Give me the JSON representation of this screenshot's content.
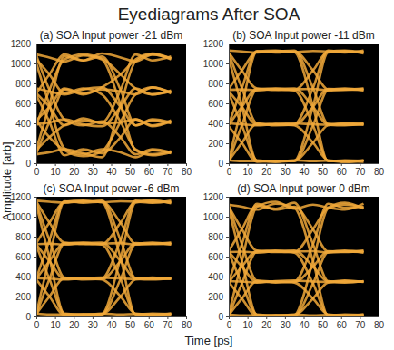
{
  "title": "Eyediagrams After SOA",
  "x_label": "Time [ps]",
  "y_label": "Amplitude [arb]",
  "chart_data": [
    {
      "type": "line",
      "title": "(a) SOA Input power -21 dBm",
      "color": "#f0a83a",
      "x": [
        0,
        7,
        15,
        25,
        35,
        45,
        53,
        62,
        72
      ],
      "xlim": [
        0,
        80
      ],
      "xticks": [
        0,
        10,
        20,
        30,
        40,
        50,
        60,
        70,
        80
      ],
      "ylim": [
        0,
        1200
      ],
      "yticks": [
        0,
        200,
        400,
        600,
        800,
        1000,
        1200
      ],
      "series": [
        {
          "values": [
            1000,
            585,
            150,
            90,
            140,
            110,
            60,
            130,
            100
          ]
        },
        {
          "values": [
            680,
            415,
            80,
            140,
            100,
            260,
            440,
            380,
            430
          ]
        },
        {
          "values": [
            430,
            260,
            130,
            70,
            120,
            415,
            690,
            760,
            700
          ]
        },
        {
          "values": [
            90,
            110,
            140,
            100,
            60,
            585,
            1020,
            1090,
            1040
          ]
        },
        {
          "values": [
            1080,
            735,
            440,
            380,
            420,
            260,
            90,
            140,
            110
          ]
        },
        {
          "values": [
            700,
            565,
            380,
            450,
            400,
            410,
            440,
            370,
            420
          ]
        },
        {
          "values": [
            390,
            410,
            440,
            390,
            370,
            565,
            750,
            690,
            730
          ]
        },
        {
          "values": [
            130,
            260,
            380,
            430,
            410,
            735,
            1090,
            1030,
            1070
          ]
        },
        {
          "values": [
            1040,
            890,
            700,
            750,
            690,
            415,
            140,
            90,
            120
          ]
        },
        {
          "values": [
            750,
            720,
            690,
            740,
            760,
            565,
            380,
            430,
            400
          ]
        },
        {
          "values": [
            430,
            565,
            750,
            700,
            740,
            720,
            690,
            760,
            710
          ]
        },
        {
          "values": [
            100,
            415,
            740,
            690,
            760,
            890,
            1040,
            1100,
            1050
          ]
        },
        {
          "values": [
            1090,
            1060,
            1020,
            1080,
            1040,
            585,
            130,
            80,
            110
          ]
        },
        {
          "values": [
            700,
            890,
            1090,
            1030,
            1070,
            735,
            380,
            440,
            410
          ]
        },
        {
          "values": [
            380,
            735,
            1040,
            1090,
            1050,
            890,
            750,
            690,
            720
          ]
        },
        {
          "values": [
            140,
            585,
            1070,
            1030,
            1100,
            1060,
            1020,
            1090,
            1050
          ]
        }
      ]
    },
    {
      "type": "line",
      "title": "(b) SOA Input power -11 dBm",
      "color": "#f0a83a",
      "x": [
        0,
        7,
        15,
        25,
        35,
        45,
        53,
        62,
        72
      ],
      "xlim": [
        0,
        80
      ],
      "xticks": [
        0,
        10,
        20,
        30,
        40,
        50,
        60,
        70,
        80
      ],
      "ylim": [
        0,
        1200
      ],
      "yticks": [
        0,
        200,
        400,
        600,
        800,
        1000,
        1200
      ],
      "series": [
        {
          "values": [
            1050,
            570,
            25,
            15,
            30,
            20,
            25,
            10,
            30
          ]
        },
        {
          "values": [
            700,
            380,
            30,
            20,
            25,
            205,
            380,
            395,
            400
          ]
        },
        {
          "values": [
            370,
            205,
            15,
            25,
            20,
            380,
            735,
            750,
            730
          ]
        },
        {
          "values": [
            30,
            20,
            20,
            15,
            25,
            570,
            1110,
            1125,
            1100
          ]
        },
        {
          "values": [
            1100,
            755,
            400,
            390,
            380,
            205,
            30,
            20,
            15
          ]
        },
        {
          "values": [
            720,
            565,
            385,
            395,
            400,
            390,
            385,
            380,
            395
          ]
        },
        {
          "values": [
            400,
            390,
            380,
            390,
            385,
            565,
            745,
            740,
            750
          ]
        },
        {
          "values": [
            25,
            205,
            395,
            380,
            390,
            755,
            1130,
            1115,
            1120
          ]
        },
        {
          "values": [
            1110,
            930,
            750,
            740,
            730,
            380,
            25,
            20,
            30
          ]
        },
        {
          "values": [
            735,
            740,
            730,
            745,
            750,
            565,
            390,
            400,
            385
          ]
        },
        {
          "values": [
            385,
            565,
            745,
            735,
            740,
            745,
            730,
            740,
            735
          ]
        },
        {
          "values": [
            20,
            380,
            740,
            750,
            735,
            930,
            1120,
            1130,
            1110
          ]
        },
        {
          "values": [
            1130,
            1120,
            1110,
            1125,
            1115,
            570,
            20,
            30,
            25
          ]
        },
        {
          "values": [
            745,
            930,
            1115,
            1120,
            1130,
            755,
            395,
            385,
            390
          ]
        },
        {
          "values": [
            390,
            755,
            1125,
            1110,
            1120,
            930,
            740,
            735,
            745
          ]
        },
        {
          "values": [
            30,
            570,
            1120,
            1130,
            1115,
            1125,
            1120,
            1110,
            1130
          ]
        }
      ]
    },
    {
      "type": "line",
      "title": "(c) SOA Input power -6 dBm",
      "color": "#f0a83a",
      "x": [
        0,
        7,
        15,
        25,
        35,
        45,
        53,
        62,
        72
      ],
      "xlim": [
        0,
        80
      ],
      "xticks": [
        0,
        10,
        20,
        30,
        40,
        50,
        60,
        70,
        80
      ],
      "ylim": [
        0,
        1200
      ],
      "yticks": [
        0,
        200,
        400,
        600,
        800,
        1000,
        1200
      ],
      "series": [
        {
          "values": [
            1120,
            585,
            25,
            15,
            30,
            20,
            25,
            15,
            30
          ]
        },
        {
          "values": [
            710,
            375,
            30,
            20,
            25,
            200,
            370,
            385,
            380
          ]
        },
        {
          "values": [
            370,
            200,
            15,
            25,
            20,
            375,
            725,
            740,
            720
          ]
        },
        {
          "values": [
            30,
            20,
            20,
            15,
            25,
            585,
            1140,
            1160,
            1135
          ]
        },
        {
          "values": [
            1140,
            765,
            390,
            380,
            370,
            200,
            30,
            20,
            15
          ]
        },
        {
          "values": [
            720,
            555,
            375,
            385,
            390,
            380,
            375,
            370,
            385
          ]
        },
        {
          "values": [
            385,
            380,
            370,
            380,
            375,
            555,
            735,
            730,
            740
          ]
        },
        {
          "values": [
            25,
            200,
            385,
            370,
            380,
            765,
            1160,
            1145,
            1150
          ]
        },
        {
          "values": [
            1150,
            940,
            740,
            730,
            720,
            375,
            25,
            20,
            30
          ]
        },
        {
          "values": [
            725,
            730,
            720,
            735,
            740,
            555,
            380,
            390,
            375
          ]
        },
        {
          "values": [
            375,
            555,
            735,
            725,
            730,
            735,
            720,
            730,
            725
          ]
        },
        {
          "values": [
            20,
            375,
            730,
            740,
            725,
            940,
            1150,
            1160,
            1140
          ]
        },
        {
          "values": [
            1160,
            1150,
            1140,
            1155,
            1145,
            585,
            20,
            30,
            25
          ]
        },
        {
          "values": [
            735,
            940,
            1145,
            1150,
            1160,
            765,
            385,
            375,
            380
          ]
        },
        {
          "values": [
            380,
            765,
            1155,
            1140,
            1150,
            940,
            730,
            725,
            735
          ]
        },
        {
          "values": [
            30,
            585,
            1150,
            1160,
            1145,
            1155,
            1150,
            1140,
            1160
          ]
        }
      ]
    },
    {
      "type": "line",
      "title": "(d) SOA Input power 0 dBm",
      "color": "#f0a83a",
      "x": [
        0,
        7,
        15,
        25,
        35,
        45,
        53,
        62,
        72
      ],
      "xlim": [
        0,
        80
      ],
      "xticks": [
        0,
        10,
        20,
        30,
        40,
        50,
        60,
        70,
        80
      ],
      "ylim": [
        0,
        1200
      ],
      "yticks": [
        0,
        200,
        400,
        600,
        800,
        1000,
        1200
      ],
      "series": [
        {
          "values": [
            1080,
            555,
            15,
            5,
            20,
            10,
            15,
            5,
            20
          ]
        },
        {
          "values": [
            640,
            330,
            20,
            10,
            15,
            180,
            340,
            355,
            350
          ]
        },
        {
          "values": [
            345,
            180,
            5,
            15,
            10,
            330,
            645,
            660,
            640
          ]
        },
        {
          "values": [
            20,
            10,
            10,
            5,
            15,
            555,
            1080,
            1120,
            1090
          ]
        },
        {
          "values": [
            1110,
            725,
            360,
            350,
            340,
            180,
            20,
            10,
            5
          ]
        },
        {
          "values": [
            650,
            500,
            345,
            355,
            360,
            350,
            345,
            340,
            355
          ]
        },
        {
          "values": [
            355,
            350,
            340,
            350,
            345,
            500,
            655,
            650,
            660
          ]
        },
        {
          "values": [
            15,
            180,
            355,
            340,
            350,
            725,
            1130,
            1090,
            1100
          ]
        },
        {
          "values": [
            1100,
            875,
            660,
            650,
            640,
            330,
            15,
            10,
            20
          ]
        },
        {
          "values": [
            645,
            650,
            640,
            655,
            660,
            500,
            350,
            360,
            345
          ]
        },
        {
          "values": [
            345,
            500,
            655,
            645,
            650,
            655,
            640,
            650,
            645
          ]
        },
        {
          "values": [
            10,
            330,
            650,
            660,
            645,
            875,
            1090,
            1140,
            1080
          ]
        },
        {
          "values": [
            1120,
            1100,
            1070,
            1130,
            1090,
            555,
            10,
            20,
            15
          ]
        },
        {
          "values": [
            655,
            875,
            1110,
            1080,
            1140,
            725,
            355,
            345,
            350
          ]
        },
        {
          "values": [
            350,
            725,
            1130,
            1070,
            1100,
            875,
            650,
            645,
            655
          ]
        },
        {
          "values": [
            20,
            555,
            1100,
            1150,
            1080,
            1120,
            1090,
            1070,
            1130
          ]
        }
      ]
    }
  ]
}
